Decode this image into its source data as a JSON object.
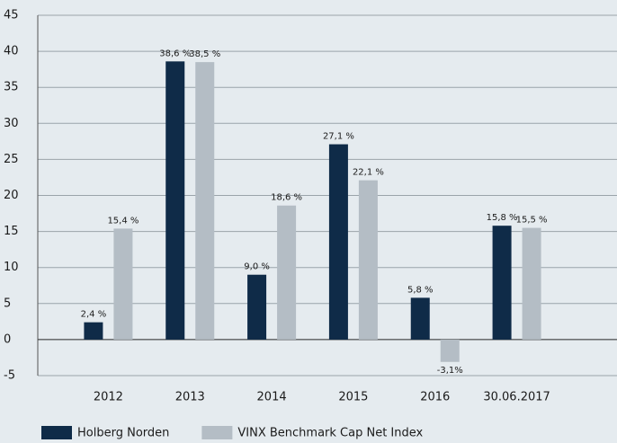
{
  "chart_data": {
    "type": "bar",
    "categories": [
      "2012",
      "2013",
      "2014",
      "2015",
      "2016",
      "30.06.2017"
    ],
    "series": [
      {
        "name": "Holberg Norden",
        "color": "#0f2b48",
        "values": [
          2.4,
          38.6,
          9.0,
          27.1,
          5.8,
          15.8
        ],
        "value_labels": [
          "2,4 %",
          "38,6 %",
          "9,0 %",
          "27,1 %",
          "5,8 %",
          "15,8 %"
        ]
      },
      {
        "name": "VINX Benchmark Cap Net Index",
        "color": "#b4bdc5",
        "values": [
          15.4,
          38.5,
          18.6,
          22.1,
          -3.1,
          15.5
        ],
        "value_labels": [
          "15,4 %",
          "38,5 %",
          "18,6 %",
          "22,1 %",
          "-3,1%",
          "15,5 %"
        ]
      }
    ],
    "ylim": [
      -5,
      45
    ],
    "yticks": [
      -5,
      0,
      5,
      10,
      15,
      20,
      25,
      30,
      35,
      40,
      45
    ],
    "grid": true,
    "legend": "bottom"
  }
}
